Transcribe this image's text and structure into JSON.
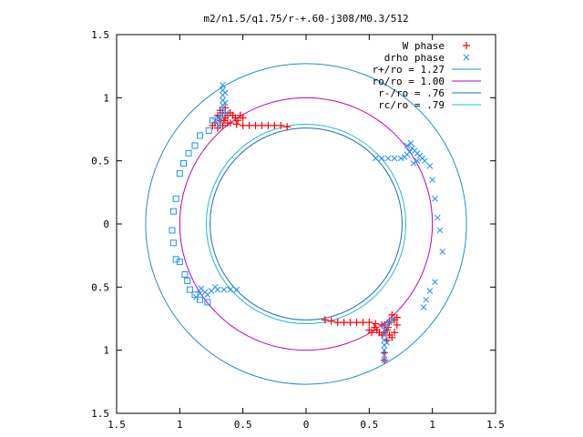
{
  "chart_data": {
    "type": "scatter",
    "title": "m2/n1.5/q1.75/r-+.60-j308/M0.3/512",
    "xlim": [
      -1.5,
      1.5
    ],
    "ylim": [
      -1.5,
      1.5
    ],
    "x_ticks": [
      -1.5,
      -1,
      -0.5,
      0,
      0.5,
      1,
      1.5
    ],
    "y_ticks": [
      -1.5,
      -1,
      -0.5,
      0,
      0.5,
      1,
      1.5
    ],
    "x_tick_labels": [
      "1.5",
      "1",
      "0.5",
      "0",
      "0.5",
      "1",
      "1.5"
    ],
    "y_tick_labels": [
      "1.5",
      "1",
      "0.5",
      "0",
      "0.5",
      "1",
      "1.5"
    ],
    "legend_position": "top-right",
    "legend": [
      {
        "label": "W phase",
        "marker": "plus",
        "color": "#ff0000"
      },
      {
        "label": "drho phase",
        "marker": "cross",
        "color": "#1e90ff"
      },
      {
        "label": "r+/ro = 1.27",
        "line": true,
        "color": "#1f8fd0"
      },
      {
        "label": "ro/ro = 1.00",
        "line": true,
        "color": "#c000c0"
      },
      {
        "label": "r-/ro = .76",
        "line": true,
        "color": "#1f6fb0"
      },
      {
        "label": "rc/ro = .79",
        "line": true,
        "color": "#20c0d0"
      }
    ],
    "circles": [
      {
        "name": "r+/ro",
        "r": 1.27,
        "color": "#1f8fd0"
      },
      {
        "name": "ro/ro",
        "r": 1.0,
        "color": "#c000c0"
      },
      {
        "name": "r-/ro",
        "r": 0.76,
        "color": "#1f6fb0"
      },
      {
        "name": "rc/ro",
        "r": 0.79,
        "color": "#20c0d0"
      }
    ],
    "series": [
      {
        "name": "W phase",
        "marker": "plus",
        "color": "#ff0000",
        "clusters": [
          {
            "arm": [
              [
                -0.65,
                0.82
              ],
              [
                -0.6,
                0.8
              ],
              [
                -0.55,
                0.79
              ],
              [
                -0.5,
                0.78
              ],
              [
                -0.45,
                0.78
              ],
              [
                -0.4,
                0.78
              ],
              [
                -0.35,
                0.78
              ],
              [
                -0.3,
                0.78
              ],
              [
                -0.25,
                0.78
              ],
              [
                -0.2,
                0.78
              ],
              [
                -0.15,
                0.77
              ]
            ],
            "blob": [
              [
                -0.7,
                0.86
              ],
              [
                -0.68,
                0.9
              ],
              [
                -0.66,
                0.88
              ],
              [
                -0.64,
                0.84
              ],
              [
                -0.62,
                0.86
              ],
              [
                -0.6,
                0.88
              ],
              [
                -0.58,
                0.86
              ],
              [
                -0.56,
                0.84
              ],
              [
                -0.54,
                0.82
              ],
              [
                -0.52,
                0.86
              ],
              [
                -0.5,
                0.84
              ],
              [
                -0.72,
                0.8
              ],
              [
                -0.7,
                0.76
              ],
              [
                -0.66,
                0.78
              ],
              [
                -0.64,
                0.92
              ],
              [
                -0.62,
                0.8
              ],
              [
                -0.68,
                0.82
              ],
              [
                -0.74,
                0.78
              ]
            ]
          },
          {
            "arm": [
              [
                0.65,
                -0.82
              ],
              [
                0.6,
                -0.8
              ],
              [
                0.55,
                -0.79
              ],
              [
                0.5,
                -0.78
              ],
              [
                0.45,
                -0.78
              ],
              [
                0.4,
                -0.78
              ],
              [
                0.35,
                -0.78
              ],
              [
                0.3,
                -0.78
              ],
              [
                0.25,
                -0.78
              ],
              [
                0.2,
                -0.77
              ],
              [
                0.15,
                -0.76
              ]
            ],
            "blob": [
              [
                0.7,
                -0.86
              ],
              [
                0.68,
                -0.9
              ],
              [
                0.66,
                -0.88
              ],
              [
                0.64,
                -0.84
              ],
              [
                0.62,
                -0.86
              ],
              [
                0.6,
                -0.88
              ],
              [
                0.58,
                -0.86
              ],
              [
                0.56,
                -0.84
              ],
              [
                0.54,
                -0.82
              ],
              [
                0.52,
                -0.86
              ],
              [
                0.5,
                -0.84
              ],
              [
                0.72,
                -0.8
              ],
              [
                0.7,
                -0.76
              ],
              [
                0.66,
                -0.78
              ],
              [
                0.64,
                -0.92
              ],
              [
                0.62,
                -0.8
              ],
              [
                0.68,
                -0.72
              ],
              [
                0.72,
                -0.74
              ],
              [
                0.62,
                -1.02
              ],
              [
                0.62,
                -1.08
              ]
            ]
          }
        ]
      },
      {
        "name": "drho phase",
        "marker": "cross",
        "color": "#1e90ff",
        "clusters": [
          {
            "points": [
              [
                -0.66,
                1.1
              ],
              [
                -0.66,
                1.06
              ],
              [
                -0.66,
                1.02
              ],
              [
                -0.66,
                0.98
              ],
              [
                -0.66,
                0.94
              ],
              [
                -0.67,
                0.9
              ],
              [
                -0.67,
                0.86
              ],
              [
                -0.68,
                0.82
              ],
              [
                -0.69,
                0.78
              ],
              [
                -0.64,
                1.04
              ],
              [
                -0.64,
                0.96
              ],
              [
                -0.63,
                0.88
              ],
              [
                -0.7,
                0.84
              ],
              [
                -0.72,
                0.82
              ]
            ]
          },
          {
            "points": [
              [
                0.55,
                0.52
              ],
              [
                0.6,
                0.52
              ],
              [
                0.65,
                0.52
              ],
              [
                0.7,
                0.52
              ],
              [
                0.75,
                0.52
              ],
              [
                0.78,
                0.53
              ],
              [
                0.8,
                0.55
              ],
              [
                0.82,
                0.57
              ],
              [
                0.84,
                0.6
              ],
              [
                0.86,
                0.58
              ],
              [
                0.88,
                0.56
              ],
              [
                0.9,
                0.54
              ],
              [
                0.92,
                0.52
              ],
              [
                0.94,
                0.5
              ],
              [
                0.88,
                0.5
              ],
              [
                0.85,
                0.48
              ],
              [
                0.98,
                0.46
              ],
              [
                1.0,
                0.35
              ],
              [
                1.02,
                0.2
              ],
              [
                1.04,
                0.05
              ],
              [
                1.06,
                -0.05
              ],
              [
                1.08,
                -0.22
              ],
              [
                1.02,
                -0.46
              ],
              [
                0.98,
                -0.53
              ],
              [
                0.95,
                -0.6
              ],
              [
                0.93,
                -0.66
              ],
              [
                0.8,
                0.62
              ],
              [
                0.83,
                0.64
              ]
            ]
          },
          {
            "points": [
              [
                -0.55,
                -0.52
              ],
              [
                -0.6,
                -0.52
              ],
              [
                -0.65,
                -0.52
              ],
              [
                -0.7,
                -0.52
              ],
              [
                -0.75,
                -0.53
              ],
              [
                -0.8,
                -0.54
              ],
              [
                -0.84,
                -0.55
              ],
              [
                -0.87,
                -0.58
              ],
              [
                -0.83,
                -0.51
              ],
              [
                -0.78,
                -0.56
              ],
              [
                -0.72,
                -0.5
              ]
            ]
          },
          {
            "points": [
              [
                0.62,
                -0.8
              ],
              [
                0.62,
                -0.84
              ],
              [
                0.62,
                -0.88
              ],
              [
                0.62,
                -0.92
              ],
              [
                0.62,
                -0.96
              ],
              [
                0.62,
                -1.0
              ],
              [
                0.62,
                -1.04
              ],
              [
                0.62,
                -1.08
              ],
              [
                0.64,
                -0.82
              ],
              [
                0.66,
                -0.78
              ],
              [
                0.68,
                -0.76
              ],
              [
                0.64,
                -0.94
              ]
            ]
          }
        ],
        "squares": [
          [
            -0.74,
            0.82
          ],
          [
            -0.77,
            0.74
          ],
          [
            -0.84,
            0.7
          ],
          [
            -0.88,
            0.62
          ],
          [
            -0.93,
            0.56
          ],
          [
            -0.97,
            0.48
          ],
          [
            -1.0,
            0.4
          ],
          [
            -1.03,
            0.2
          ],
          [
            -1.05,
            0.1
          ],
          [
            -1.06,
            -0.05
          ],
          [
            -1.05,
            -0.15
          ],
          [
            -1.03,
            -0.28
          ],
          [
            -1.0,
            -0.3
          ],
          [
            -0.96,
            -0.4
          ],
          [
            -0.94,
            -0.45
          ],
          [
            -0.92,
            -0.52
          ],
          [
            -0.88,
            -0.56
          ],
          [
            -0.84,
            -0.6
          ],
          [
            -0.78,
            -0.62
          ]
        ]
      }
    ]
  }
}
